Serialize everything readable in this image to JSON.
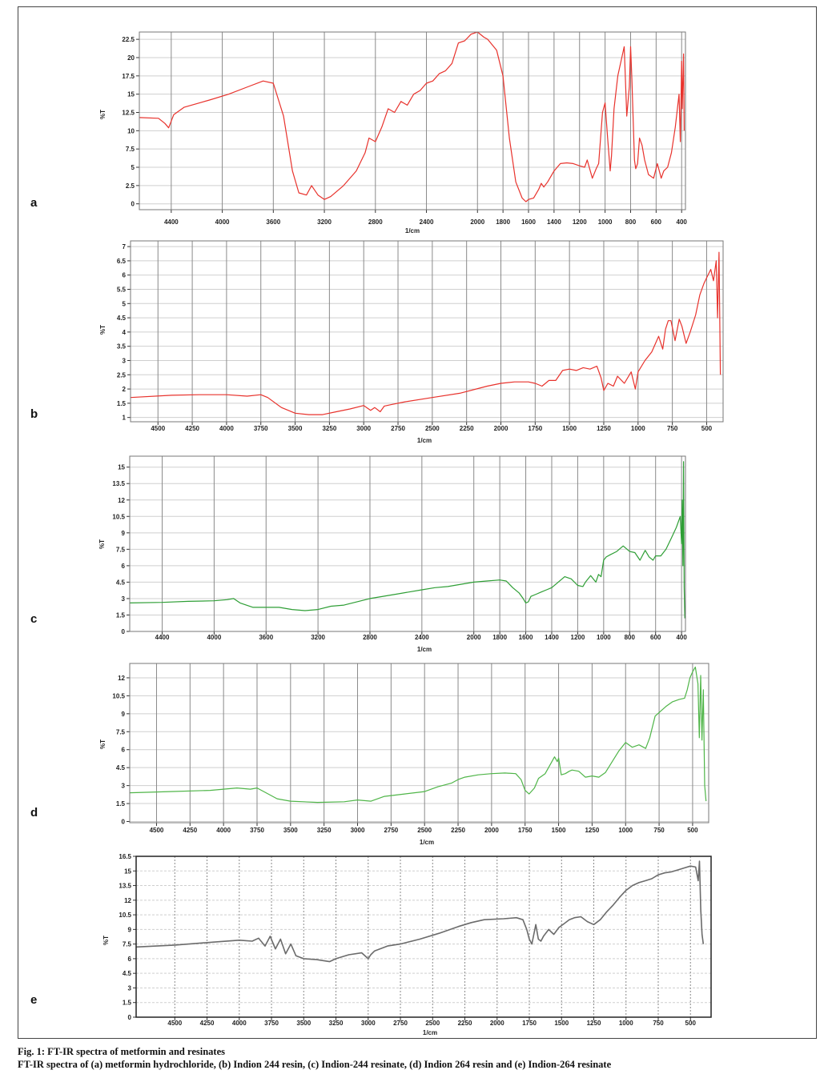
{
  "caption": {
    "title": "Fig. 1: FT-IR spectra of metformin and resinates",
    "description": "FT-IR spectra of (a) metformin hydrochloride, (b) Indion 244 resin, (c) Indion-244 resinate, (d) Indion 264 resin and (e) Indion-264 resinate"
  },
  "chart_data": [
    {
      "panel": "a",
      "type": "line",
      "color": "#e8322c",
      "xlabel": "1/cm",
      "ylabel": "%T",
      "xlim": [
        4650,
        370
      ],
      "ylim": [
        -0.8,
        23.5
      ],
      "xticks": [
        4400,
        4000,
        3600,
        3200,
        2800,
        2400,
        2000,
        1800,
        1600,
        1400,
        1200,
        1000,
        800,
        600,
        400
      ],
      "yticks": [
        0,
        2.5,
        5,
        7.5,
        10,
        12.5,
        15,
        17.5,
        20,
        22.5
      ],
      "ytick_labels": [
        "0",
        "2.5",
        "5",
        "7.5",
        "10",
        "12.5",
        "15",
        "17.5",
        "20",
        "22.5"
      ],
      "grid": true,
      "x": [
        4650,
        4500,
        4450,
        4420,
        4380,
        4300,
        4100,
        3950,
        3800,
        3680,
        3600,
        3520,
        3450,
        3400,
        3340,
        3300,
        3250,
        3200,
        3150,
        3050,
        2950,
        2880,
        2850,
        2800,
        2750,
        2700,
        2650,
        2600,
        2550,
        2500,
        2450,
        2400,
        2350,
        2300,
        2250,
        2200,
        2150,
        2100,
        2050,
        2000,
        1950,
        1920,
        1850,
        1800,
        1750,
        1700,
        1650,
        1620,
        1600,
        1560,
        1520,
        1500,
        1480,
        1450,
        1400,
        1350,
        1300,
        1250,
        1200,
        1160,
        1140,
        1100,
        1070,
        1050,
        1020,
        1000,
        980,
        960,
        950,
        930,
        900,
        850,
        830,
        810,
        800,
        790,
        770,
        760,
        745,
        730,
        710,
        690,
        660,
        620,
        590,
        560,
        540,
        510,
        480,
        450,
        420,
        410,
        400,
        395,
        385,
        380
      ],
      "y": [
        11.8,
        11.7,
        11.0,
        10.4,
        12.2,
        13.2,
        14.2,
        15.0,
        16.0,
        16.8,
        16.5,
        12.0,
        4.5,
        1.5,
        1.2,
        2.5,
        1.2,
        0.6,
        1.0,
        2.5,
        4.5,
        7.0,
        9.0,
        8.5,
        10.5,
        13.0,
        12.5,
        14.0,
        13.5,
        15.0,
        15.5,
        16.5,
        16.8,
        17.8,
        18.2,
        19.2,
        22.0,
        22.3,
        23.2,
        23.5,
        22.8,
        22.5,
        21.0,
        17.5,
        9.0,
        3.0,
        0.8,
        0.3,
        0.6,
        0.8,
        2.0,
        2.8,
        2.3,
        3.0,
        4.5,
        5.5,
        5.6,
        5.5,
        5.2,
        5.0,
        6.0,
        3.5,
        4.8,
        5.5,
        12.5,
        13.8,
        9.0,
        4.5,
        6.5,
        13.0,
        17.5,
        21.5,
        12.0,
        16.0,
        21.5,
        17.0,
        6.0,
        4.8,
        5.5,
        9.0,
        8.0,
        6.0,
        4.0,
        3.5,
        5.5,
        3.5,
        4.5,
        5.0,
        7.0,
        10.5,
        15.0,
        8.5,
        19.5,
        13.0,
        20.5,
        10.0
      ]
    },
    {
      "panel": "b",
      "type": "line",
      "color": "#e8322c",
      "xlabel": "1/cm",
      "ylabel": "%T",
      "xlim": [
        4700,
        380
      ],
      "ylim": [
        0.85,
        7.2
      ],
      "xticks": [
        4500,
        4250,
        4000,
        3750,
        3500,
        3250,
        3000,
        2750,
        2500,
        2250,
        2000,
        1750,
        1500,
        1250,
        1000,
        750,
        500
      ],
      "yticks": [
        1,
        1.5,
        2,
        2.5,
        3,
        3.5,
        4,
        4.5,
        5,
        5.5,
        6,
        6.5,
        7
      ],
      "ytick_labels": [
        "1",
        "1.5",
        "2",
        "2.5",
        "3",
        "3.5",
        "4",
        "4.5",
        "5",
        "5.5",
        "6",
        "6.5",
        "7"
      ],
      "grid": true,
      "x": [
        4700,
        4400,
        4200,
        4000,
        3850,
        3750,
        3700,
        3600,
        3500,
        3400,
        3300,
        3200,
        3100,
        3000,
        2950,
        2920,
        2880,
        2850,
        2800,
        2700,
        2500,
        2300,
        2100,
        2000,
        1900,
        1800,
        1750,
        1700,
        1650,
        1600,
        1550,
        1500,
        1450,
        1400,
        1350,
        1300,
        1270,
        1250,
        1220,
        1180,
        1150,
        1100,
        1050,
        1020,
        1000,
        950,
        900,
        850,
        820,
        800,
        780,
        760,
        730,
        700,
        680,
        650,
        620,
        580,
        550,
        520,
        500,
        470,
        450,
        430,
        420,
        410,
        400
      ],
      "y": [
        1.7,
        1.78,
        1.8,
        1.8,
        1.75,
        1.8,
        1.7,
        1.35,
        1.15,
        1.1,
        1.1,
        1.2,
        1.3,
        1.42,
        1.25,
        1.35,
        1.2,
        1.4,
        1.45,
        1.55,
        1.7,
        1.85,
        2.1,
        2.2,
        2.25,
        2.25,
        2.2,
        2.1,
        2.3,
        2.3,
        2.65,
        2.7,
        2.65,
        2.75,
        2.7,
        2.8,
        2.4,
        1.95,
        2.2,
        2.1,
        2.45,
        2.2,
        2.6,
        2.0,
        2.6,
        3.0,
        3.3,
        3.85,
        3.4,
        4.1,
        4.4,
        4.4,
        3.7,
        4.45,
        4.2,
        3.6,
        4.0,
        4.6,
        5.3,
        5.7,
        5.9,
        6.2,
        5.8,
        6.5,
        4.5,
        6.8,
        2.5
      ]
    },
    {
      "panel": "c",
      "type": "line",
      "color": "#2e9e35",
      "xlabel": "1/cm",
      "ylabel": "%T",
      "xlim": [
        4650,
        370
      ],
      "ylim": [
        0,
        16
      ],
      "xticks": [
        4400,
        4000,
        3600,
        3200,
        2800,
        2400,
        2000,
        1800,
        1600,
        1400,
        1200,
        1000,
        800,
        600,
        400
      ],
      "yticks": [
        0,
        1.5,
        3,
        4.5,
        6,
        7.5,
        9,
        10.5,
        12,
        13.5,
        15
      ],
      "ytick_labels": [
        "0",
        "1.5",
        "3",
        "4.5",
        "6",
        "7.5",
        "9",
        "10.5",
        "12",
        "13.5",
        "15"
      ],
      "grid": true,
      "x": [
        4650,
        4400,
        4200,
        4000,
        3900,
        3850,
        3800,
        3700,
        3600,
        3500,
        3400,
        3300,
        3200,
        3100,
        3000,
        2800,
        2600,
        2400,
        2300,
        2200,
        2100,
        2000,
        1900,
        1800,
        1750,
        1700,
        1650,
        1620,
        1600,
        1580,
        1560,
        1520,
        1480,
        1440,
        1400,
        1350,
        1300,
        1250,
        1200,
        1160,
        1140,
        1100,
        1060,
        1040,
        1020,
        1000,
        980,
        950,
        900,
        850,
        800,
        760,
        720,
        680,
        650,
        620,
        600,
        560,
        520,
        480,
        440,
        410,
        400,
        395,
        390,
        385,
        380,
        375
      ],
      "y": [
        2.6,
        2.65,
        2.75,
        2.8,
        2.9,
        3.0,
        2.6,
        2.2,
        2.2,
        2.2,
        2.0,
        1.9,
        2.0,
        2.3,
        2.4,
        3.0,
        3.4,
        3.8,
        4.0,
        4.1,
        4.3,
        4.5,
        4.6,
        4.7,
        4.6,
        4.0,
        3.5,
        3.0,
        2.6,
        2.7,
        3.2,
        3.4,
        3.6,
        3.8,
        4.0,
        4.5,
        5.0,
        4.8,
        4.2,
        4.1,
        4.5,
        5.1,
        4.5,
        5.2,
        5.0,
        6.5,
        6.8,
        7.0,
        7.3,
        7.8,
        7.3,
        7.2,
        6.5,
        7.4,
        6.8,
        6.5,
        6.9,
        6.9,
        7.5,
        8.5,
        9.5,
        10.5,
        8.0,
        12.0,
        6.0,
        15.5,
        4.0,
        1.2
      ]
    },
    {
      "panel": "d",
      "type": "line",
      "color": "#4fb548",
      "xlabel": "1/cm",
      "ylabel": "%T",
      "xlim": [
        4700,
        380
      ],
      "ylim": [
        -0.1,
        13.2
      ],
      "xticks": [
        4500,
        4250,
        4000,
        3750,
        3500,
        3250,
        3000,
        2750,
        2500,
        2250,
        2000,
        1750,
        1500,
        1250,
        1000,
        750,
        500
      ],
      "yticks": [
        0,
        1.5,
        3,
        4.5,
        6,
        7.5,
        9,
        10.5,
        12
      ],
      "ytick_labels": [
        "0",
        "1.5",
        "3",
        "4.5",
        "6",
        "7.5",
        "9",
        "10.5",
        "12"
      ],
      "grid": true,
      "x": [
        4700,
        4400,
        4100,
        3900,
        3800,
        3750,
        3700,
        3600,
        3500,
        3300,
        3100,
        3000,
        2900,
        2800,
        2650,
        2500,
        2400,
        2300,
        2250,
        2200,
        2100,
        2000,
        1900,
        1820,
        1780,
        1750,
        1720,
        1680,
        1650,
        1600,
        1560,
        1530,
        1510,
        1500,
        1480,
        1450,
        1420,
        1400,
        1350,
        1300,
        1250,
        1200,
        1150,
        1100,
        1050,
        1000,
        950,
        900,
        850,
        820,
        780,
        740,
        700,
        650,
        600,
        560,
        540,
        520,
        500,
        480,
        460,
        450,
        440,
        430,
        420,
        410,
        400
      ],
      "y": [
        2.4,
        2.5,
        2.6,
        2.8,
        2.7,
        2.8,
        2.5,
        1.9,
        1.7,
        1.6,
        1.65,
        1.8,
        1.7,
        2.1,
        2.3,
        2.5,
        2.9,
        3.2,
        3.5,
        3.7,
        3.9,
        4.0,
        4.05,
        4.0,
        3.5,
        2.6,
        2.3,
        2.8,
        3.6,
        4.0,
        4.8,
        5.4,
        5.0,
        5.3,
        3.9,
        4.0,
        4.2,
        4.3,
        4.2,
        3.7,
        3.8,
        3.7,
        4.1,
        5.0,
        5.9,
        6.6,
        6.2,
        6.4,
        6.1,
        7.0,
        8.8,
        9.2,
        9.6,
        10.0,
        10.2,
        10.3,
        11.0,
        12.0,
        12.5,
        12.9,
        11.5,
        7.0,
        12.2,
        6.8,
        11.0,
        3.0,
        1.7
      ]
    },
    {
      "panel": "e",
      "type": "line",
      "color": "#6b6b6b",
      "xlabel": "1/cm",
      "ylabel": "%T",
      "xlim": [
        4800,
        340
      ],
      "ylim": [
        0,
        16.5
      ],
      "xticks": [
        4500,
        4250,
        4000,
        3750,
        3500,
        3250,
        3000,
        2750,
        2500,
        2250,
        2000,
        1750,
        1500,
        1250,
        1000,
        750,
        500
      ],
      "yticks": [
        0,
        1.5,
        3,
        4.5,
        6,
        7.5,
        9,
        10.5,
        12,
        13.5,
        15,
        16.5
      ],
      "ytick_labels": [
        "0",
        "1.5",
        "3",
        "4.5",
        "6",
        "7.5",
        "9",
        "10.5",
        "12",
        "13.5",
        "15",
        "16.5"
      ],
      "grid": true,
      "x": [
        4800,
        4500,
        4200,
        4000,
        3900,
        3850,
        3800,
        3760,
        3720,
        3680,
        3640,
        3600,
        3560,
        3500,
        3400,
        3300,
        3250,
        3150,
        3050,
        3000,
        2980,
        2950,
        2850,
        2750,
        2600,
        2450,
        2300,
        2200,
        2100,
        1950,
        1850,
        1800,
        1770,
        1750,
        1730,
        1700,
        1680,
        1660,
        1640,
        1600,
        1560,
        1520,
        1480,
        1440,
        1400,
        1350,
        1300,
        1250,
        1200,
        1150,
        1100,
        1050,
        1000,
        950,
        900,
        850,
        800,
        750,
        700,
        650,
        600,
        550,
        500,
        460,
        440,
        430,
        420,
        410,
        400
      ],
      "y": [
        7.2,
        7.4,
        7.7,
        7.9,
        7.8,
        8.1,
        7.3,
        8.3,
        7.0,
        8.0,
        6.5,
        7.5,
        6.3,
        6.0,
        5.9,
        5.7,
        6.0,
        6.4,
        6.6,
        6.0,
        6.4,
        6.8,
        7.3,
        7.5,
        8.0,
        8.6,
        9.3,
        9.7,
        10.0,
        10.1,
        10.2,
        10.0,
        9.0,
        8.0,
        7.5,
        9.5,
        8.0,
        7.8,
        8.3,
        9.0,
        8.5,
        9.2,
        9.6,
        10.0,
        10.2,
        10.3,
        9.8,
        9.5,
        10.0,
        10.8,
        11.5,
        12.3,
        13.0,
        13.5,
        13.8,
        14.0,
        14.2,
        14.6,
        14.8,
        14.9,
        15.1,
        15.3,
        15.5,
        15.4,
        14.0,
        16.0,
        11.0,
        8.5,
        7.5
      ]
    }
  ]
}
